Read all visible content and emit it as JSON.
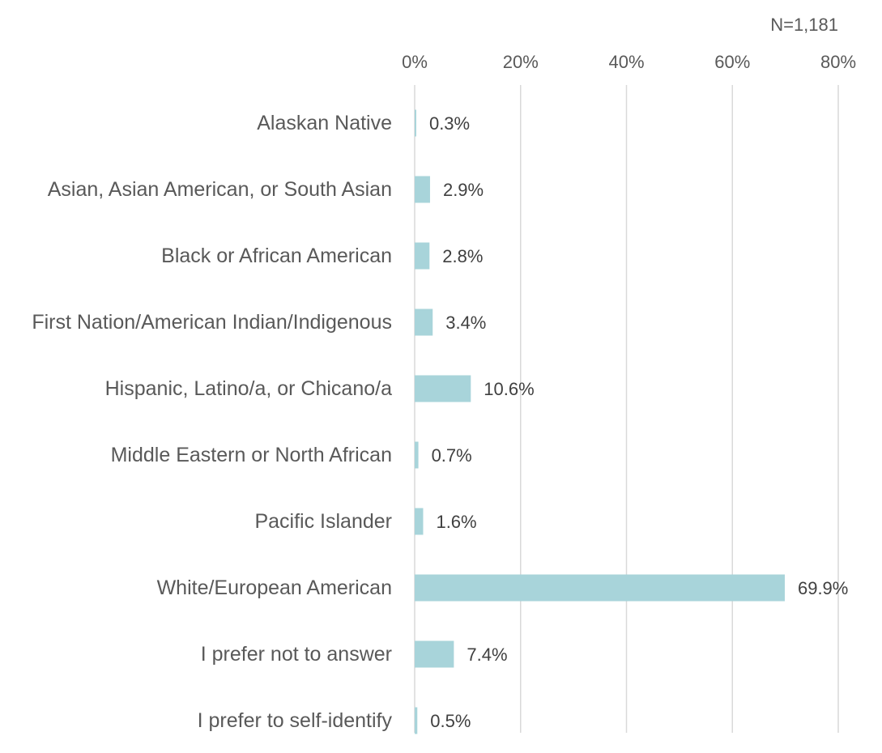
{
  "chart_data": {
    "type": "hbar",
    "annotation": "N=1,181",
    "categories": [
      "Alaskan Native",
      "Asian, Asian American, or South Asian",
      "Black or African American",
      "First Nation/American Indian/Indigenous",
      "Hispanic, Latino/a, or Chicano/a",
      "Middle Eastern or North African",
      "Pacific Islander",
      "White/European American",
      "I prefer not to answer",
      "I prefer to self-identify"
    ],
    "values": [
      0.3,
      2.9,
      2.8,
      3.4,
      10.6,
      0.7,
      1.6,
      69.9,
      7.4,
      0.5
    ],
    "value_labels": [
      "0.3%",
      "2.9%",
      "2.8%",
      "3.4%",
      "10.6%",
      "0.7%",
      "1.6%",
      "69.9%",
      "7.4%",
      "0.5%"
    ],
    "color": "#a8d4da",
    "xlim": [
      0,
      80
    ],
    "xticks": [
      {
        "value": 0,
        "label": "0%"
      },
      {
        "value": 20,
        "label": "20%"
      },
      {
        "value": 40,
        "label": "40%"
      },
      {
        "value": 60,
        "label": "60%"
      },
      {
        "value": 80,
        "label": "80%"
      }
    ],
    "grid": true
  }
}
